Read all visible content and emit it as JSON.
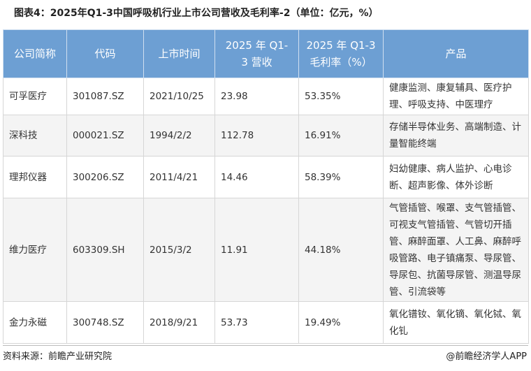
{
  "header": {
    "title": "图表4：2025年Q1-3中国呼吸机行业上市公司营收及毛利率-2（单位：亿元，%）"
  },
  "table": {
    "columns": [
      "公司简称",
      "代码",
      "上市时间",
      "2025 年 Q1-3 营收",
      "2025 年 Q1-3 毛利率（%）",
      "产品"
    ],
    "rows": [
      [
        "可孚医疗",
        "301087.SZ",
        "2021/10/25",
        "23.98",
        "53.35%",
        "健康监测、康复辅具、医疗护理、呼吸支持、中医理疗"
      ],
      [
        "深科技",
        "000021.SZ",
        "1994/2/2",
        "112.78",
        "16.91%",
        "存储半导体业务、高端制造、计量智能终端"
      ],
      [
        "理邦仪器",
        "300206.SZ",
        "2011/4/21",
        "14.46",
        "58.39%",
        "妇幼健康、病人监护、心电诊断、超声影像、体外诊断"
      ],
      [
        "维力医疗",
        "603309.SH",
        "2015/3/2",
        "11.91",
        "44.18%",
        "气管插管、喉罩、支气管插管、可视支气管插管、气管切开插管、麻醉面罩、人工鼻、麻醉呼吸管路、电子镇痛泵、导尿管、导尿包、抗菌导尿管、测温导尿管、引流袋等"
      ],
      [
        "金力永磁",
        "300748.SZ",
        "2018/9/21",
        "53.73",
        "19.49%",
        "氧化镨钕、氧化镝、氧化铽、氧化钆"
      ]
    ]
  },
  "footer": {
    "source": "资料来源：前瞻产业研究院",
    "brand": "@前瞻经济学人APP"
  }
}
